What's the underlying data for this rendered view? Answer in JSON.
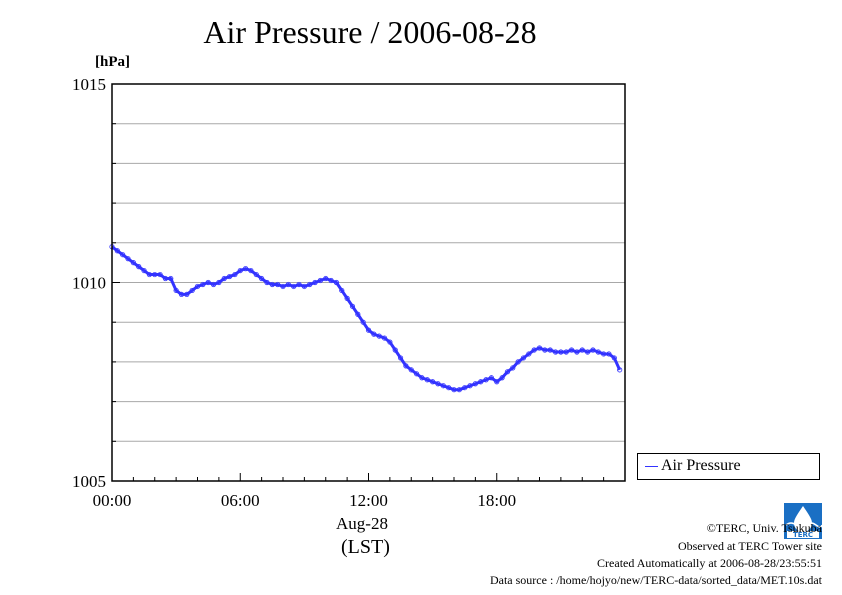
{
  "chart_data": {
    "type": "line",
    "title": "Air Pressure / 2006-08-28",
    "ylabel": "[hPa]",
    "ylim": [
      1005,
      1015
    ],
    "y_major_ticks": [
      "1005",
      "1010",
      "1015"
    ],
    "xlim": [
      0,
      24
    ],
    "x_ticks": [
      "00:00",
      "06:00",
      "12:00",
      "18:00"
    ],
    "x_date_label": "Aug-28",
    "x_timezone_label": "(LST)",
    "grid": true,
    "legend_position": "right",
    "series": [
      {
        "name": "Air Pressure",
        "color": "#3333ff",
        "x": [
          0,
          0.25,
          0.5,
          0.75,
          1.0,
          1.25,
          1.5,
          1.75,
          2.0,
          2.25,
          2.5,
          2.75,
          3.0,
          3.25,
          3.5,
          3.75,
          4.0,
          4.25,
          4.5,
          4.75,
          5.0,
          5.25,
          5.5,
          5.75,
          6.0,
          6.25,
          6.5,
          6.75,
          7.0,
          7.25,
          7.5,
          7.75,
          8.0,
          8.25,
          8.5,
          8.75,
          9.0,
          9.25,
          9.5,
          9.75,
          10.0,
          10.25,
          10.5,
          10.75,
          11.0,
          11.25,
          11.5,
          11.75,
          12.0,
          12.25,
          12.5,
          12.75,
          13.0,
          13.25,
          13.5,
          13.75,
          14.0,
          14.25,
          14.5,
          14.75,
          15.0,
          15.25,
          15.5,
          15.75,
          16.0,
          16.25,
          16.5,
          16.75,
          17.0,
          17.25,
          17.5,
          17.75,
          18.0,
          18.25,
          18.5,
          18.75,
          19.0,
          19.25,
          19.5,
          19.75,
          20.0,
          20.25,
          20.5,
          20.75,
          21.0,
          21.25,
          21.5,
          21.75,
          22.0,
          22.25,
          22.5,
          22.75,
          23.0,
          23.25,
          23.5,
          23.75
        ],
        "values": [
          1010.9,
          1010.8,
          1010.7,
          1010.6,
          1010.5,
          1010.4,
          1010.3,
          1010.2,
          1010.2,
          1010.2,
          1010.1,
          1010.1,
          1009.8,
          1009.7,
          1009.7,
          1009.8,
          1009.9,
          1009.95,
          1010.0,
          1009.95,
          1010.0,
          1010.1,
          1010.15,
          1010.2,
          1010.3,
          1010.35,
          1010.3,
          1010.2,
          1010.1,
          1010.0,
          1009.95,
          1009.95,
          1009.9,
          1009.95,
          1009.9,
          1009.95,
          1009.9,
          1009.95,
          1010.0,
          1010.05,
          1010.1,
          1010.05,
          1010.0,
          1009.8,
          1009.6,
          1009.4,
          1009.2,
          1009.0,
          1008.8,
          1008.7,
          1008.65,
          1008.6,
          1008.5,
          1008.3,
          1008.1,
          1007.9,
          1007.8,
          1007.7,
          1007.6,
          1007.55,
          1007.5,
          1007.45,
          1007.4,
          1007.35,
          1007.3,
          1007.3,
          1007.35,
          1007.4,
          1007.45,
          1007.5,
          1007.55,
          1007.6,
          1007.5,
          1007.6,
          1007.75,
          1007.85,
          1008.0,
          1008.1,
          1008.2,
          1008.3,
          1008.35,
          1008.3,
          1008.3,
          1008.25,
          1008.25,
          1008.25,
          1008.3,
          1008.25,
          1008.3,
          1008.25,
          1008.3,
          1008.25,
          1008.2,
          1008.2,
          1008.1,
          1007.8
        ]
      }
    ]
  },
  "footer": {
    "copyright": "©TERC, Univ. Tsukuba",
    "site": "Observed at TERC Tower site",
    "created": "Created Automatically at 2006-08-28/23:55:51",
    "source": "Data source : /home/hojyo/new/TERC-data/sorted_data/MET.10s.dat"
  },
  "logo": {
    "text": "TERC",
    "color": "#1a6fc4"
  }
}
